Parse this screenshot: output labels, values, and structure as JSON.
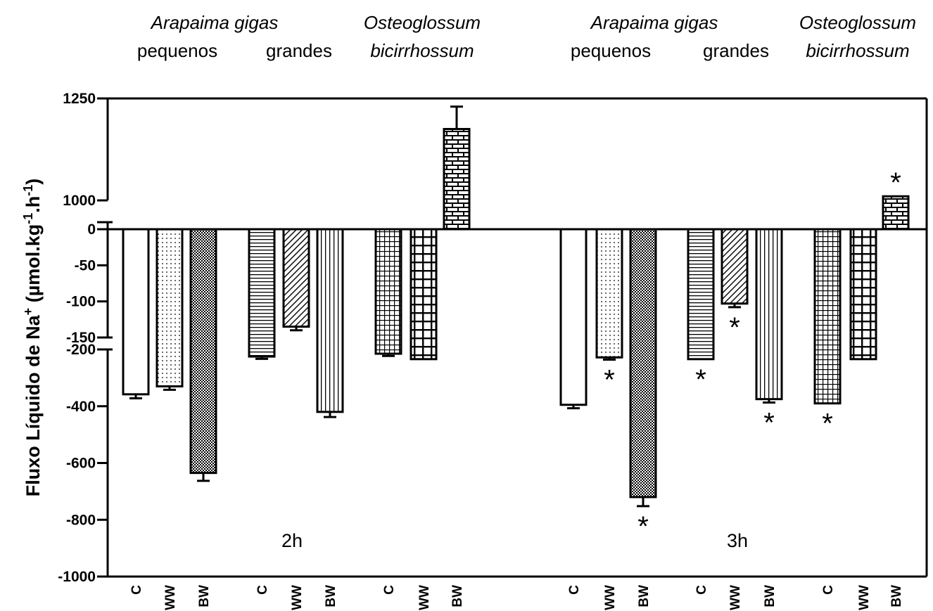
{
  "chart_data": {
    "type": "bar",
    "ylabel": "Fluxo Líquido de Na",
    "ylabel_sup1": "+",
    "ylabel_unit_a": " (µmol.kg",
    "ylabel_sup2": "-1",
    "ylabel_unit_b": ".h",
    "ylabel_sup3": "-1",
    "ylabel_close": ")",
    "yticks": [
      1250,
      1000,
      0,
      -50,
      -100,
      -150,
      -200,
      -400,
      -600,
      -800,
      -1000
    ],
    "ylim": [
      -1000,
      1250
    ],
    "axis_breaks": [
      [
        0,
        1000
      ],
      [
        -200,
        -150
      ]
    ],
    "species_headers": [
      {
        "line1": "Arapaima gigas",
        "line1_italic": true
      },
      {
        "line1": "Osteoglossum",
        "line2": "bicirrhossum",
        "italic": true
      }
    ],
    "size_headers": [
      "pequenos",
      "grandes"
    ],
    "time_labels": [
      "2h",
      "3h"
    ],
    "significance_marker": "*",
    "categories": [
      "C",
      "WW",
      "BW"
    ],
    "panels": [
      {
        "time": "2h",
        "groups": [
          {
            "group": "Arapaima gigas pequenos",
            "bars": [
              {
                "cat": "C",
                "value": -358,
                "error": 14,
                "sig": false
              },
              {
                "cat": "WW",
                "value": -330,
                "error": 12,
                "sig": false
              },
              {
                "cat": "BW",
                "value": -635,
                "error": 28,
                "sig": false
              }
            ]
          },
          {
            "group": "Arapaima gigas grandes",
            "bars": [
              {
                "cat": "C",
                "value": -225,
                "error": 8,
                "sig": false
              },
              {
                "cat": "WW",
                "value": -135,
                "error": 5,
                "sig": false
              },
              {
                "cat": "BW",
                "value": -420,
                "error": 18,
                "sig": false
              }
            ]
          },
          {
            "group": "Osteoglossum bicirrhossum",
            "bars": [
              {
                "cat": "C",
                "value": -215,
                "error": 8,
                "sig": false
              },
              {
                "cat": "WW",
                "value": -180,
                "error": 0,
                "sig": false
              },
              {
                "cat": "BW",
                "value": 1175,
                "error": 55,
                "sig": false
              }
            ]
          }
        ]
      },
      {
        "time": "3h",
        "groups": [
          {
            "group": "Arapaima gigas pequenos",
            "bars": [
              {
                "cat": "C",
                "value": -395,
                "error": 12,
                "sig": false
              },
              {
                "cat": "WW",
                "value": -228,
                "error": 8,
                "sig": true
              },
              {
                "cat": "BW",
                "value": -720,
                "error": 32,
                "sig": true
              }
            ]
          },
          {
            "group": "Arapaima gigas grandes",
            "bars": [
              {
                "cat": "C",
                "value": -180,
                "error": 0,
                "sig": true
              },
              {
                "cat": "WW",
                "value": -103,
                "error": 5,
                "sig": true
              },
              {
                "cat": "BW",
                "value": -375,
                "error": 12,
                "sig": true
              }
            ]
          },
          {
            "group": "Osteoglossum bicirrhossum",
            "bars": [
              {
                "cat": "C",
                "value": -390,
                "error": 0,
                "sig": true
              },
              {
                "cat": "WW",
                "value": -180,
                "error": 0,
                "sig": false
              },
              {
                "cat": "BW",
                "value": 1010,
                "error": 0,
                "sig": true
              }
            ]
          }
        ]
      }
    ],
    "patterns_by_bar": [
      "white",
      "dots",
      "checker",
      "hlines",
      "diag",
      "vlines",
      "smallgrid",
      "biggrid",
      "brick"
    ]
  }
}
